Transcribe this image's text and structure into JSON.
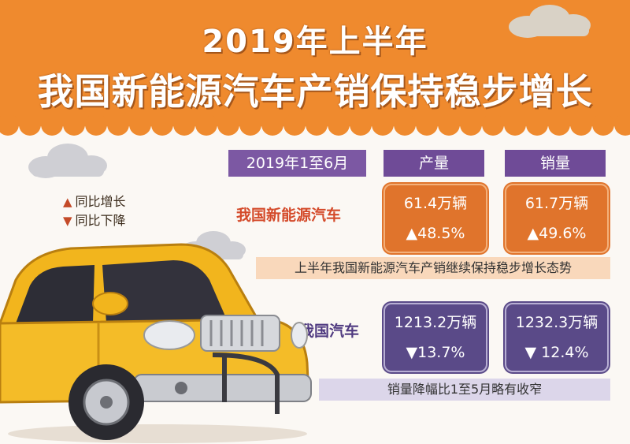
{
  "title": {
    "line1": "2019年上半年",
    "line2": "我国新能源汽车产销保持稳步增长"
  },
  "legend": {
    "up_symbol": "▲",
    "up_label": "同比增长",
    "down_symbol": "▼",
    "down_label": "同比下降"
  },
  "table": {
    "period": "2019年1至6月",
    "col_production": "产量",
    "col_sales": "销量",
    "rows": [
      {
        "label": "我国新能源汽车",
        "production_value": "61.4万辆",
        "production_change": "▲48.5%",
        "sales_value": "61.7万辆",
        "sales_change": "▲49.6%",
        "note": "上半年我国新能源汽车产销继续保持稳步增长态势"
      },
      {
        "label": "我国汽车",
        "production_value": "1213.2万辆",
        "production_change": "▼13.7%",
        "sales_value": "1232.3万辆",
        "sales_change": "▼ 12.4%",
        "note": "销量降幅比1至5月略有收窄"
      }
    ]
  },
  "colors": {
    "banner": "#ef8a2e",
    "new_energy_box": "#e0742c",
    "all_cars_box": "#5a4a88",
    "header": "#6f4b97",
    "car_body": "#f2b51d"
  },
  "icons": [
    "cloud-icon",
    "car-illustration",
    "up-triangle-icon",
    "down-triangle-icon"
  ]
}
